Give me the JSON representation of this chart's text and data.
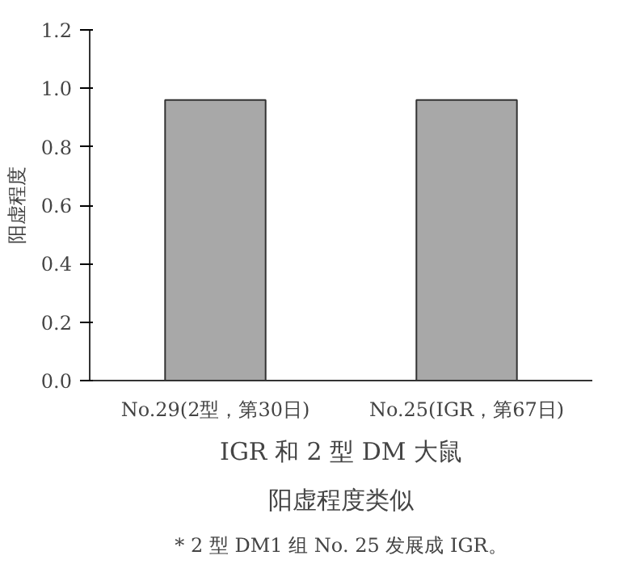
{
  "chart_data": {
    "type": "bar",
    "title": "IGR 和 2 型 DM 大鼠",
    "subtitle": "阳虚程度类似",
    "ylabel": "阳虚程度",
    "categories": [
      "No.29(2型，第30日)",
      "No.25(IGR，第67日)"
    ],
    "values": [
      0.96,
      0.96
    ],
    "color": "#a8a8a8",
    "ylim": [
      0,
      1.2
    ],
    "yticks": [
      {
        "value": 0,
        "label": "0.0"
      },
      {
        "value": 0.2,
        "label": "0.2"
      },
      {
        "value": 0.4,
        "label": "0.4"
      },
      {
        "value": 0.6,
        "label": "0.6"
      },
      {
        "value": 0.8,
        "label": "0.8"
      },
      {
        "value": 1.0,
        "label": "1.0"
      },
      {
        "value": 1.2,
        "label": "1.2"
      }
    ],
    "grid": false,
    "annotations": [
      "* 2 型 DM1 组 No. 25 发展成 IGR。"
    ]
  }
}
